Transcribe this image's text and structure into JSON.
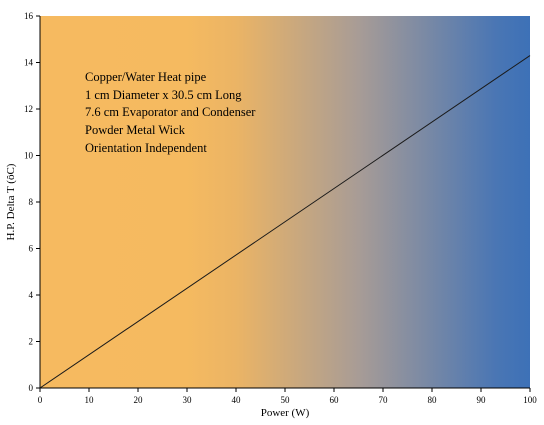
{
  "chart_data": {
    "type": "line",
    "title": "",
    "xlabel": "Power (W)",
    "ylabel": "H.P. Delta T (ôC)",
    "xlim": [
      0,
      100
    ],
    "ylim": [
      0,
      16
    ],
    "x_ticks": [
      0,
      10,
      20,
      30,
      40,
      50,
      60,
      70,
      80,
      90,
      100
    ],
    "x_tick_labels": [
      "0",
      "10",
      "20",
      "30",
      "40",
      "50",
      "60",
      "70",
      "80",
      "90",
      "100"
    ],
    "y_ticks": [
      0,
      2,
      4,
      6,
      8,
      10,
      12,
      14,
      16
    ],
    "y_tick_labels": [
      "0",
      "2",
      "4",
      "6",
      "8",
      "10",
      "12",
      "14",
      "16"
    ],
    "grid": false,
    "legend": "none",
    "series": [
      {
        "x": [
          0,
          100
        ],
        "y": [
          0,
          14.3
        ]
      }
    ],
    "annotation_lines": [
      "Copper/Water Heat pipe",
      "1 cm Diameter x 30.5 cm Long",
      "7.6 cm Evaporator and Condenser",
      "Powder Metal Wick",
      "Orientation Independent"
    ],
    "background_gradient": {
      "direction": "left-to-right",
      "stops": [
        "#F6BA60",
        "#F5BA60",
        "#EBB465",
        "#A89C96",
        "#4A76B4",
        "#3D71B7"
      ]
    },
    "line_color": "#1A1A1A"
  }
}
